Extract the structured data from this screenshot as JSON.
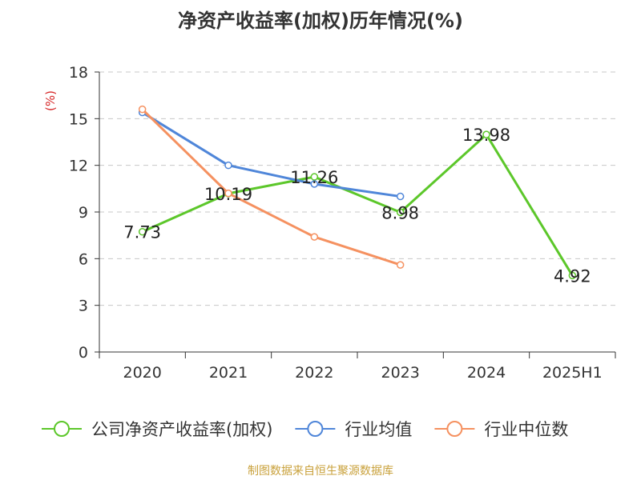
{
  "chart_data": {
    "type": "line",
    "title": "净资产收益率(加权)历年情况(%)",
    "ylabel": "(%)",
    "xlabel": "",
    "categories": [
      "2020",
      "2021",
      "2022",
      "2023",
      "2024",
      "2025H1"
    ],
    "ylim": [
      0,
      18
    ],
    "yticks": [
      0,
      3,
      6,
      9,
      12,
      15,
      18
    ],
    "grid": true,
    "legend_position": "bottom",
    "series": [
      {
        "name": "公司净资产收益率(加权)",
        "color": "#5cc72a",
        "values": [
          7.73,
          10.19,
          11.26,
          8.98,
          13.98,
          4.92
        ],
        "data_labels": [
          "7.73",
          "10.19",
          "11.26",
          "8.98",
          "13.98",
          "4.92"
        ]
      },
      {
        "name": "行业均值",
        "color": "#4f86d9",
        "values": [
          15.4,
          12.0,
          10.8,
          10.0,
          null,
          null
        ]
      },
      {
        "name": "行业中位数",
        "color": "#f59160",
        "values": [
          15.6,
          10.2,
          7.4,
          5.6,
          null,
          null
        ]
      }
    ]
  },
  "source_note": "制图数据来自恒生聚源数据库"
}
